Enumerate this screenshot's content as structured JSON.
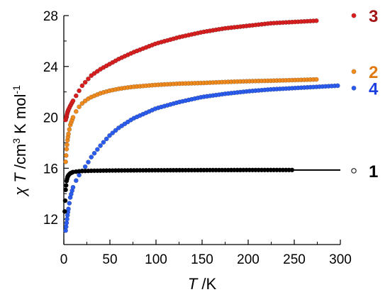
{
  "chart_data": {
    "type": "scatter",
    "title": "",
    "xlabel": {
      "var": "T",
      "unit": " /K"
    },
    "ylabel": {
      "var": "χ T",
      "unit_parts": [
        " /cm",
        "3",
        " K mol",
        "-1"
      ]
    },
    "xlim": [
      0,
      300
    ],
    "ylim": [
      10,
      28
    ],
    "xticks": [
      0,
      50,
      100,
      150,
      200,
      250,
      300
    ],
    "yticks": [
      12,
      16,
      20,
      24,
      28
    ],
    "grid": false,
    "legend": "right",
    "series": [
      {
        "name": "3",
        "color": "#d81e1e",
        "label_color": "#a31515",
        "marker": "filled",
        "points": [
          [
            2,
            19.8
          ],
          [
            3,
            20.1
          ],
          [
            4,
            20.4
          ],
          [
            5,
            20.6
          ],
          [
            7,
            20.9
          ],
          [
            10,
            21.3
          ],
          [
            15,
            21.9
          ],
          [
            20,
            22.5
          ],
          [
            25,
            22.9
          ],
          [
            30,
            23.3
          ],
          [
            40,
            23.8
          ],
          [
            50,
            24.2
          ],
          [
            60,
            24.6
          ],
          [
            75,
            25.1
          ],
          [
            100,
            25.8
          ],
          [
            125,
            26.3
          ],
          [
            150,
            26.7
          ],
          [
            175,
            27.0
          ],
          [
            200,
            27.2
          ],
          [
            225,
            27.4
          ],
          [
            250,
            27.5
          ],
          [
            275,
            27.6
          ]
        ]
      },
      {
        "name": "2",
        "color": "#f08a1c",
        "label_color": "#e07a10",
        "marker": "filled",
        "points": [
          [
            2,
            16.5
          ],
          [
            3,
            17.5
          ],
          [
            4,
            18.2
          ],
          [
            5,
            18.7
          ],
          [
            7,
            19.4
          ],
          [
            10,
            20.0
          ],
          [
            15,
            20.7
          ],
          [
            20,
            21.1
          ],
          [
            25,
            21.4
          ],
          [
            30,
            21.6
          ],
          [
            40,
            21.9
          ],
          [
            50,
            22.1
          ],
          [
            60,
            22.25
          ],
          [
            75,
            22.4
          ],
          [
            100,
            22.55
          ],
          [
            125,
            22.65
          ],
          [
            150,
            22.7
          ],
          [
            175,
            22.78
          ],
          [
            200,
            22.84
          ],
          [
            225,
            22.88
          ],
          [
            250,
            22.93
          ],
          [
            275,
            22.98
          ]
        ]
      },
      {
        "name": "4",
        "color": "#2b5cf0",
        "label_color": "#1e40e0",
        "marker": "filled",
        "points": [
          [
            2,
            11.1
          ],
          [
            3,
            11.7
          ],
          [
            4,
            12.3
          ],
          [
            5,
            12.8
          ],
          [
            7,
            13.7
          ],
          [
            10,
            14.5
          ],
          [
            15,
            15.3
          ],
          [
            20,
            15.8
          ],
          [
            25,
            16.3
          ],
          [
            30,
            16.9
          ],
          [
            40,
            17.8
          ],
          [
            50,
            18.6
          ],
          [
            60,
            19.2
          ],
          [
            75,
            19.9
          ],
          [
            100,
            20.7
          ],
          [
            125,
            21.2
          ],
          [
            150,
            21.6
          ],
          [
            175,
            21.85
          ],
          [
            200,
            22.05
          ],
          [
            225,
            22.2
          ],
          [
            250,
            22.3
          ],
          [
            275,
            22.4
          ],
          [
            300,
            22.5
          ]
        ]
      },
      {
        "name": "1",
        "color": "#000000",
        "label_color": "#000000",
        "marker": "filled-to-250-then-line",
        "points": [
          [
            1,
            12.6
          ],
          [
            2,
            14.3
          ],
          [
            3,
            15.0
          ],
          [
            4,
            15.3
          ],
          [
            5,
            15.45
          ],
          [
            7,
            15.6
          ],
          [
            10,
            15.7
          ],
          [
            15,
            15.75
          ],
          [
            20,
            15.78
          ],
          [
            30,
            15.8
          ],
          [
            50,
            15.82
          ],
          [
            100,
            15.84
          ],
          [
            150,
            15.85
          ],
          [
            200,
            15.86
          ],
          [
            250,
            15.86
          ],
          [
            300,
            15.86
          ]
        ]
      }
    ]
  }
}
